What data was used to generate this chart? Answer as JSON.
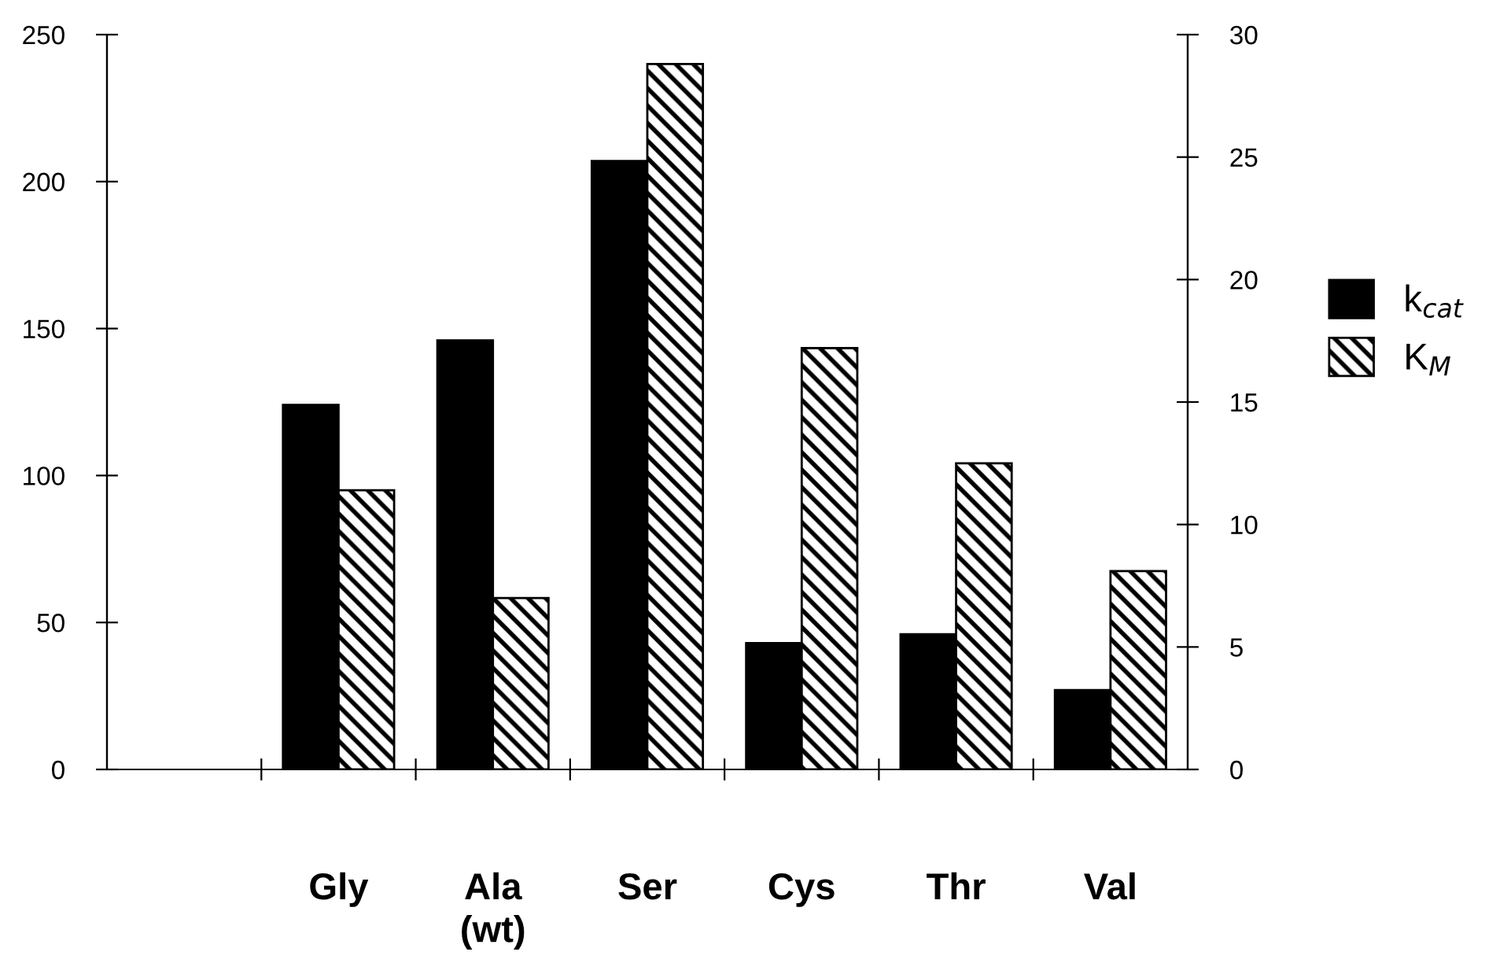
{
  "chart_data": {
    "type": "bar",
    "categories": [
      null,
      "Gly",
      "Ala\n(wt)",
      "Ser",
      "Cys",
      "Thr",
      "Val"
    ],
    "series": [
      {
        "name": "k$_{cat}$",
        "color": "#000000",
        "values": [
          null,
          124,
          146,
          207,
          43,
          46,
          27
        ]
      },
      {
        "name": "K$_{M}$",
        "color": "#000000",
        "axis": "y2",
        "values": [
          null,
          11.4,
          7.0,
          28.8,
          17.2,
          12.5,
          8.1
        ]
      }
    ],
    "ylim": [
      0,
      250
    ],
    "yticks": [
      0,
      50,
      100,
      150,
      200,
      250
    ],
    "y2lim": [
      0,
      30
    ],
    "y2ticks": [
      0,
      5,
      10,
      15,
      20,
      25,
      30
    ],
    "grid": false,
    "legend": "right"
  }
}
